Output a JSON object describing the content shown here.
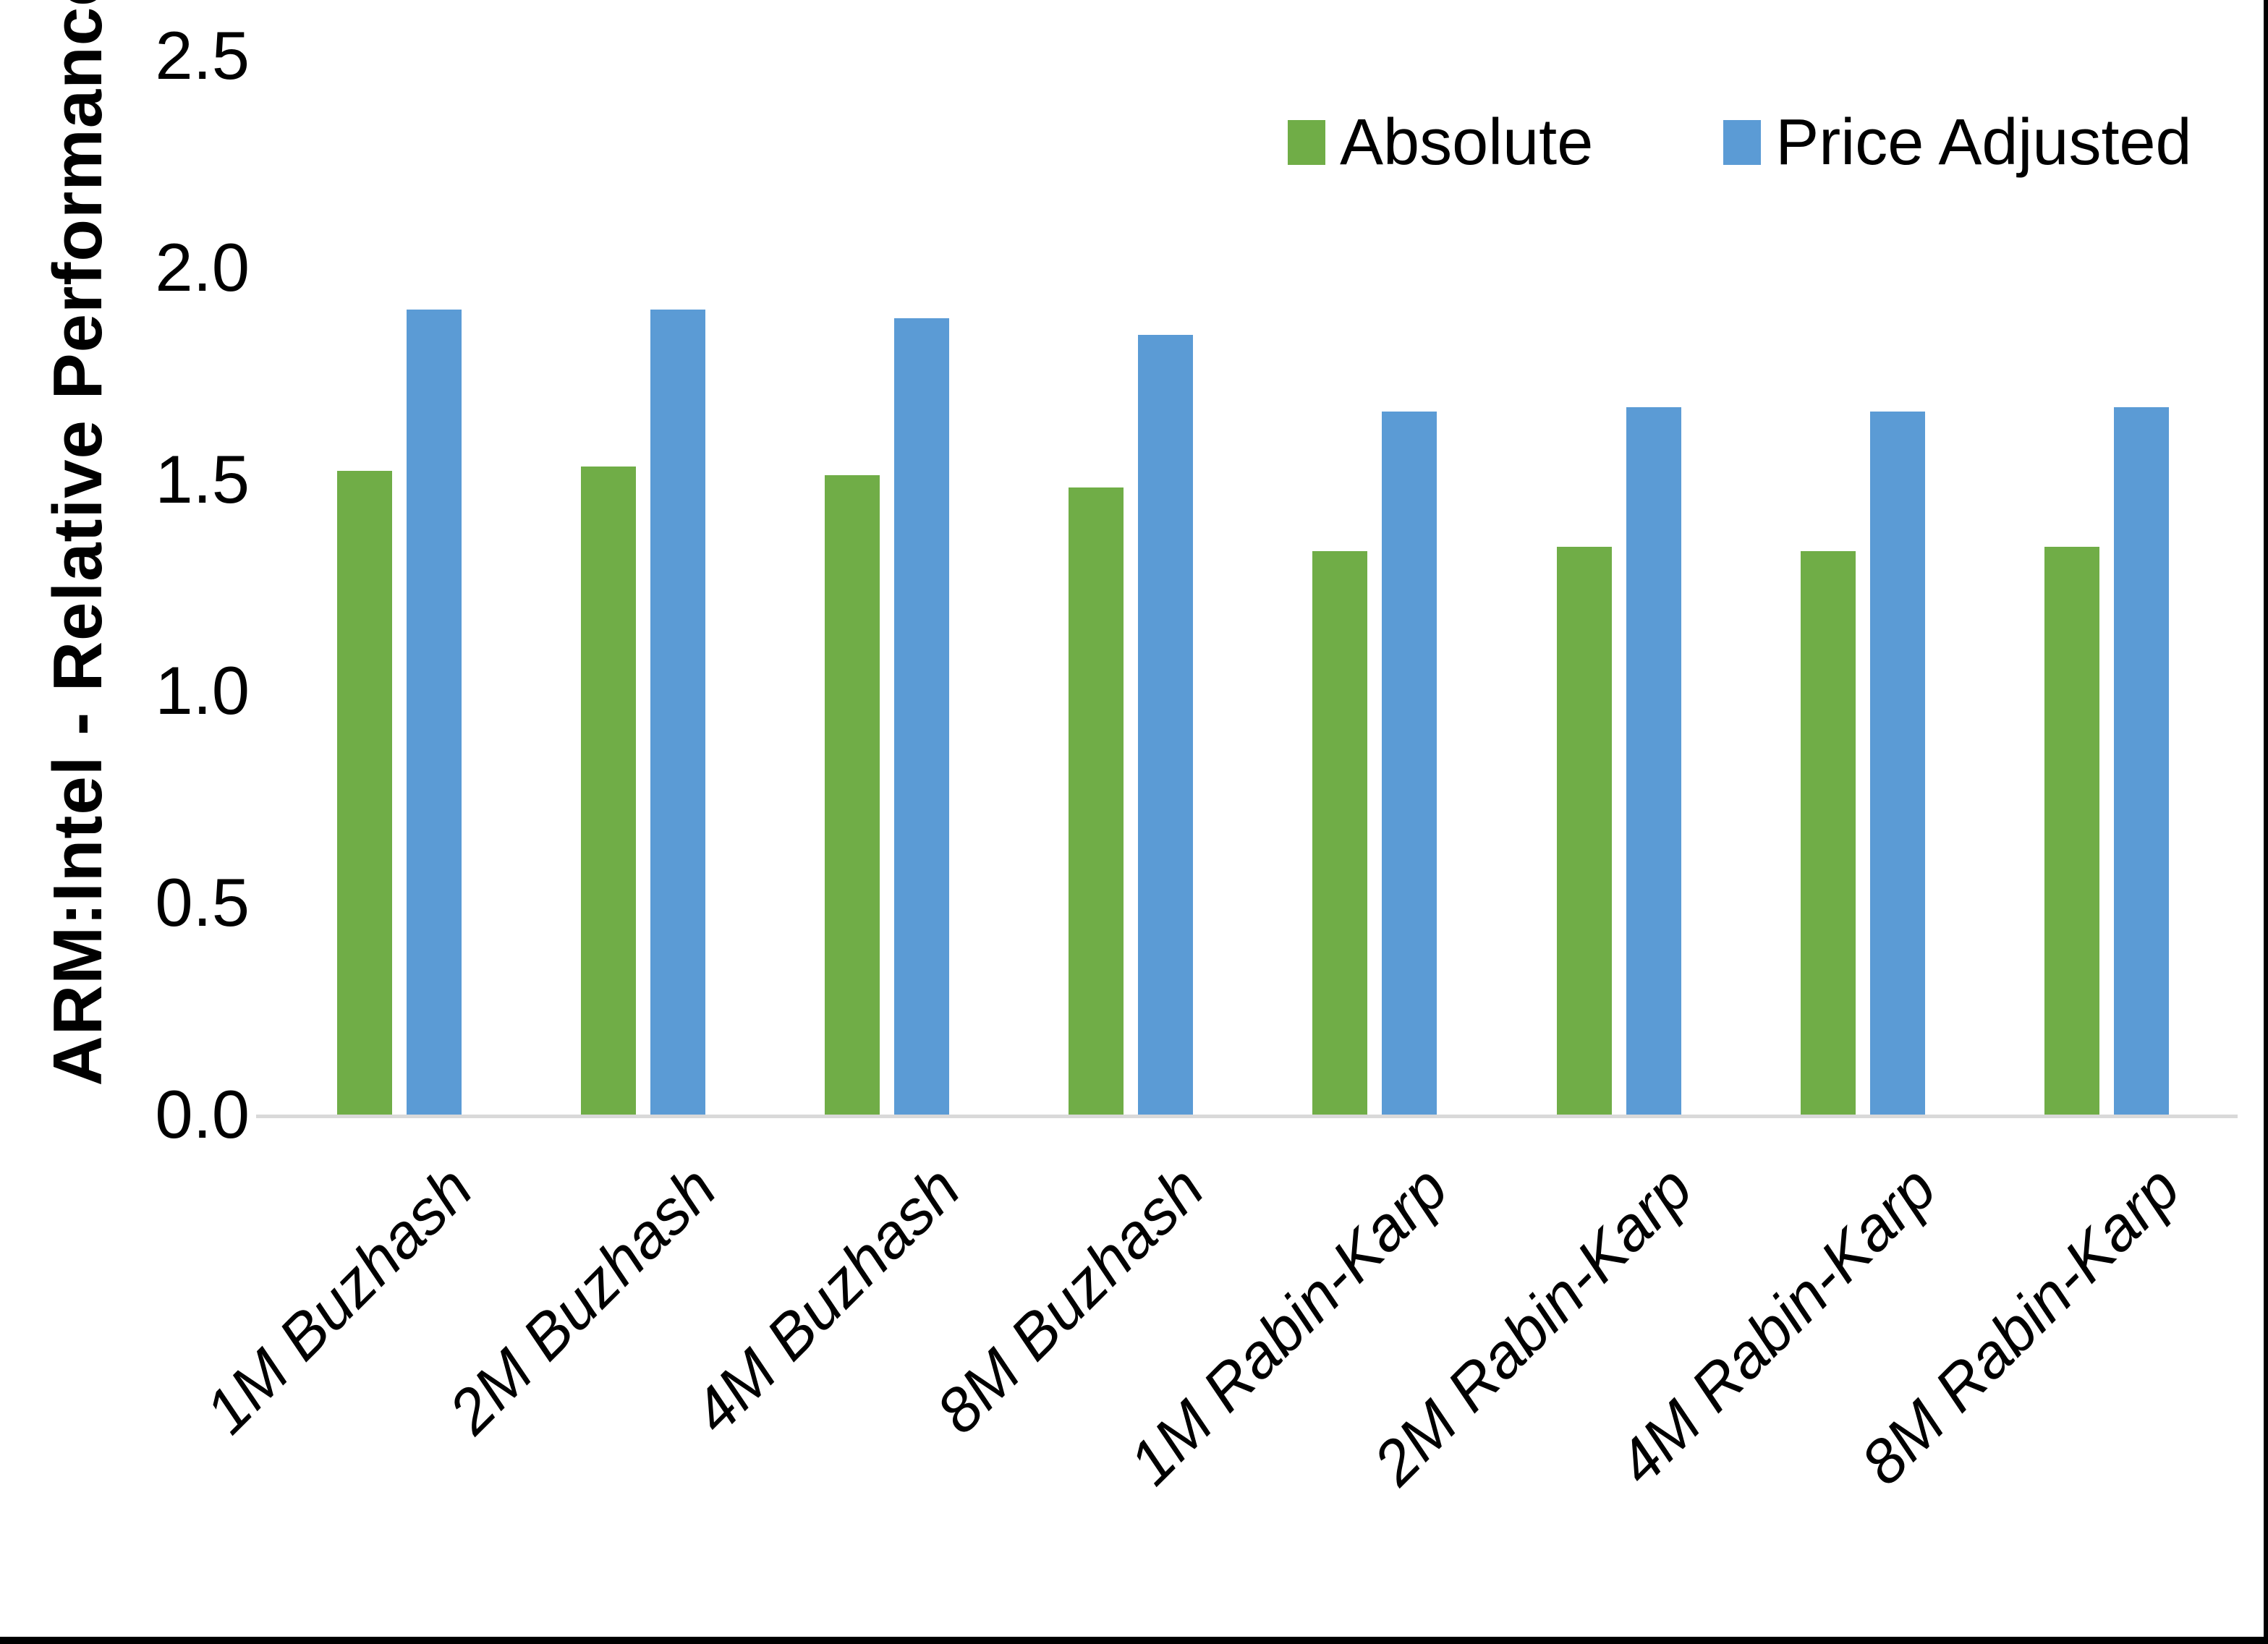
{
  "chart_data": {
    "type": "bar",
    "title": "",
    "ylabel": "ARM:Intel - Relative Performance",
    "xlabel": "",
    "ylim": [
      0.0,
      2.5
    ],
    "ytick_labels": [
      "0.0",
      "0.5",
      "1.0",
      "1.5",
      "2.0",
      "2.5"
    ],
    "grid": false,
    "legend_position": "top-right-inside",
    "categories": [
      "1M Buzhash",
      "2M Buzhash",
      "4M Buzhash",
      "8M Buzhash",
      "1M Rabin-Karp",
      "2M Rabin-Karp",
      "4M Rabin-Karp",
      "8M Rabin-Karp"
    ],
    "series": [
      {
        "name": "Absolute",
        "color": "#70AD47",
        "values": [
          1.52,
          1.53,
          1.51,
          1.48,
          1.33,
          1.34,
          1.33,
          1.34
        ]
      },
      {
        "name": "Price Adjusted",
        "color": "#5B9BD5",
        "values": [
          1.9,
          1.9,
          1.88,
          1.84,
          1.66,
          1.67,
          1.66,
          1.67
        ]
      }
    ]
  },
  "colors": {
    "background": "#FFFFFF",
    "axis_line": "#D9D9D9",
    "text": "#000000",
    "frame_edge": "#000000"
  }
}
